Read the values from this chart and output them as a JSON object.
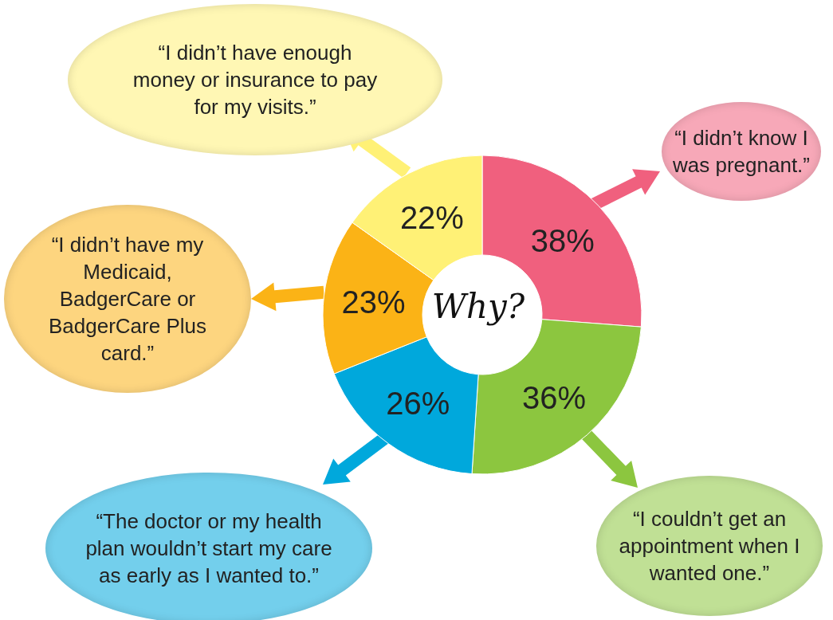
{
  "chart_data": {
    "type": "donut",
    "categories": [
      "“I didn’t know I was pregnant.”",
      "“I couldn’t get an appointment when I wanted one.”",
      "“The doctor or my health plan wouldn’t start my care as early as I wanted to.”",
      "“I didn’t have my Medicaid, BadgerCare or BadgerCare Plus card.”",
      "“I didn’t have enough money or insurance to pay for my visits.”"
    ],
    "values": [
      38,
      36,
      26,
      23,
      22
    ],
    "colors": [
      "#f0607e",
      "#8cc63f",
      "#00a8dc",
      "#fbb316",
      "#fff176"
    ],
    "value_labels": [
      "38%",
      "36%",
      "26%",
      "23%",
      "22%"
    ],
    "annotations": [
      "Why?"
    ]
  }
}
